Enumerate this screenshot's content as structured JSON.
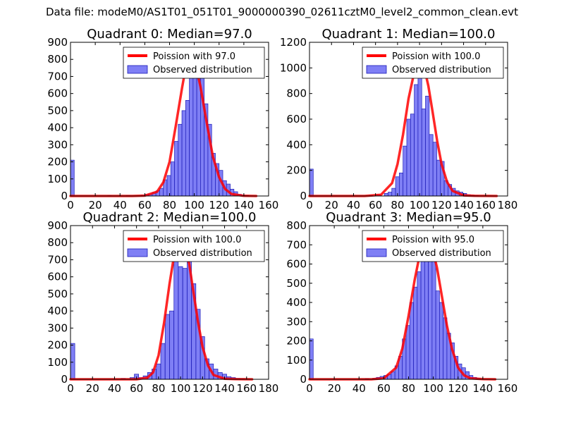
{
  "figure": {
    "suptitle": "Data file: modeM0/AS1T01_051T01_9000000390_02611cztM0_level2_common_clean.evt"
  },
  "colors": {
    "hist_fill": "#7f7ff5",
    "hist_edge": "#1b1bb8",
    "curve": "#ff0000",
    "axis": "#000000"
  },
  "chart_data": [
    {
      "type": "bar",
      "title": "Quadrant 0: Median=97.0",
      "xlim": [
        0,
        160
      ],
      "ylim": [
        0,
        900
      ],
      "xticks": [
        0,
        20,
        40,
        60,
        80,
        100,
        120,
        140,
        160
      ],
      "yticks": [
        0,
        100,
        200,
        300,
        400,
        500,
        600,
        700,
        800,
        900
      ],
      "legend_position": "top-right",
      "legend": [
        "Poission with 97.0",
        "Observed distribution"
      ],
      "bin_width": 3.0,
      "bins": [
        {
          "x": 0,
          "v": 210
        },
        {
          "x": 30,
          "v": 2
        },
        {
          "x": 45,
          "v": 2
        },
        {
          "x": 57,
          "v": 5
        },
        {
          "x": 60,
          "v": 10
        },
        {
          "x": 63,
          "v": 12
        },
        {
          "x": 66,
          "v": 20
        },
        {
          "x": 69,
          "v": 30
        },
        {
          "x": 72,
          "v": 45
        },
        {
          "x": 75,
          "v": 95
        },
        {
          "x": 78,
          "v": 120
        },
        {
          "x": 81,
          "v": 200
        },
        {
          "x": 84,
          "v": 320
        },
        {
          "x": 87,
          "v": 420
        },
        {
          "x": 90,
          "v": 500
        },
        {
          "x": 93,
          "v": 560
        },
        {
          "x": 96,
          "v": 780
        },
        {
          "x": 99,
          "v": 800
        },
        {
          "x": 102,
          "v": 740
        },
        {
          "x": 105,
          "v": 700
        },
        {
          "x": 108,
          "v": 540
        },
        {
          "x": 111,
          "v": 420
        },
        {
          "x": 114,
          "v": 250
        },
        {
          "x": 117,
          "v": 190
        },
        {
          "x": 120,
          "v": 150
        },
        {
          "x": 123,
          "v": 90
        },
        {
          "x": 126,
          "v": 70
        },
        {
          "x": 129,
          "v": 40
        },
        {
          "x": 132,
          "v": 25
        },
        {
          "x": 135,
          "v": 10
        },
        {
          "x": 138,
          "v": 5
        },
        {
          "x": 141,
          "v": 3
        }
      ],
      "curve": {
        "name": "Poission with 97.0",
        "x": [
          0,
          50,
          60,
          70,
          75,
          80,
          85,
          90,
          93,
          97,
          101,
          105,
          110,
          115,
          120,
          125,
          130,
          140,
          150
        ],
        "y": [
          0,
          0,
          2,
          25,
          80,
          200,
          410,
          630,
          750,
          820,
          770,
          640,
          430,
          230,
          110,
          40,
          12,
          1,
          0
        ]
      }
    },
    {
      "type": "bar",
      "title": "Quadrant 1: Median=100.0",
      "xlim": [
        0,
        180
      ],
      "ylim": [
        0,
        1200
      ],
      "xticks": [
        0,
        20,
        40,
        60,
        80,
        100,
        120,
        140,
        160,
        180
      ],
      "yticks": [
        0,
        200,
        400,
        600,
        800,
        1000,
        1200
      ],
      "legend_position": "top-right",
      "legend": [
        "Poission with 100.0",
        "Observed distribution"
      ],
      "bin_width": 3.4,
      "bins": [
        {
          "x": 0,
          "v": 210
        },
        {
          "x": 54,
          "v": 5
        },
        {
          "x": 61,
          "v": 10
        },
        {
          "x": 68,
          "v": 20
        },
        {
          "x": 71.4,
          "v": 30
        },
        {
          "x": 74.8,
          "v": 60
        },
        {
          "x": 78.2,
          "v": 150
        },
        {
          "x": 81.6,
          "v": 180
        },
        {
          "x": 85,
          "v": 390
        },
        {
          "x": 88.4,
          "v": 600
        },
        {
          "x": 91.8,
          "v": 640
        },
        {
          "x": 95.2,
          "v": 870
        },
        {
          "x": 98.6,
          "v": 1000
        },
        {
          "x": 102,
          "v": 680
        },
        {
          "x": 105.4,
          "v": 780
        },
        {
          "x": 108.8,
          "v": 480
        },
        {
          "x": 112.2,
          "v": 420
        },
        {
          "x": 115.6,
          "v": 280
        },
        {
          "x": 119,
          "v": 270
        },
        {
          "x": 122.4,
          "v": 120
        },
        {
          "x": 125.8,
          "v": 90
        },
        {
          "x": 129.2,
          "v": 60
        },
        {
          "x": 132.6,
          "v": 40
        },
        {
          "x": 136,
          "v": 30
        },
        {
          "x": 139.4,
          "v": 20
        },
        {
          "x": 142.8,
          "v": 10
        },
        {
          "x": 146.2,
          "v": 5
        },
        {
          "x": 150,
          "v": 3
        }
      ],
      "curve": {
        "name": "Poission with 100.0",
        "x": [
          0,
          50,
          65,
          75,
          80,
          85,
          90,
          95,
          100,
          104,
          108,
          112,
          116,
          120,
          125,
          130,
          140,
          150,
          170
        ],
        "y": [
          0,
          0,
          10,
          100,
          250,
          480,
          760,
          960,
          1050,
          1010,
          860,
          650,
          430,
          250,
          110,
          40,
          5,
          1,
          0
        ]
      }
    },
    {
      "type": "bar",
      "title": "Quadrant 2: Median=100.0",
      "xlim": [
        0,
        180
      ],
      "ylim": [
        0,
        900
      ],
      "xticks": [
        0,
        20,
        40,
        60,
        80,
        100,
        120,
        140,
        160,
        180
      ],
      "yticks": [
        0,
        100,
        200,
        300,
        400,
        500,
        600,
        700,
        800,
        900
      ],
      "legend_position": "top-right",
      "legend": [
        "Poission with 100.0",
        "Observed distribution"
      ],
      "bin_width": 3.9,
      "bins": [
        {
          "x": 0,
          "v": 210
        },
        {
          "x": 46,
          "v": 5
        },
        {
          "x": 54,
          "v": 10
        },
        {
          "x": 58,
          "v": 30
        },
        {
          "x": 62,
          "v": 10
        },
        {
          "x": 66,
          "v": 20
        },
        {
          "x": 70,
          "v": 40
        },
        {
          "x": 74,
          "v": 60
        },
        {
          "x": 78,
          "v": 90
        },
        {
          "x": 82,
          "v": 210
        },
        {
          "x": 86,
          "v": 380
        },
        {
          "x": 90,
          "v": 400
        },
        {
          "x": 94,
          "v": 700
        },
        {
          "x": 98,
          "v": 660
        },
        {
          "x": 102,
          "v": 650
        },
        {
          "x": 106,
          "v": 760
        },
        {
          "x": 110,
          "v": 560
        },
        {
          "x": 114,
          "v": 410
        },
        {
          "x": 118,
          "v": 250
        },
        {
          "x": 122,
          "v": 120
        },
        {
          "x": 126,
          "v": 90
        },
        {
          "x": 130,
          "v": 60
        },
        {
          "x": 134,
          "v": 40
        },
        {
          "x": 138,
          "v": 30
        },
        {
          "x": 142,
          "v": 15
        },
        {
          "x": 146,
          "v": 10
        },
        {
          "x": 150,
          "v": 5
        },
        {
          "x": 154,
          "v": 3
        }
      ],
      "curve": {
        "name": "Poission with 100.0",
        "x": [
          0,
          60,
          70,
          75,
          80,
          85,
          90,
          95,
          100,
          104,
          108,
          112,
          116,
          120,
          125,
          130,
          140,
          150,
          165
        ],
        "y": [
          0,
          0,
          10,
          40,
          140,
          330,
          560,
          760,
          820,
          790,
          670,
          500,
          330,
          190,
          80,
          25,
          3,
          1,
          0
        ]
      }
    },
    {
      "type": "bar",
      "title": "Quadrant 3: Median=95.0",
      "xlim": [
        0,
        160
      ],
      "ylim": [
        0,
        800
      ],
      "xticks": [
        0,
        20,
        40,
        60,
        80,
        100,
        120,
        140,
        160
      ],
      "yticks": [
        0,
        100,
        200,
        300,
        400,
        500,
        600,
        700,
        800
      ],
      "legend_position": "top-right",
      "legend": [
        "Poission with 95.0",
        "Observed distribution"
      ],
      "bin_width": 3.0,
      "bins": [
        {
          "x": 0,
          "v": 210
        },
        {
          "x": 45,
          "v": 3
        },
        {
          "x": 51,
          "v": 5
        },
        {
          "x": 54,
          "v": 10
        },
        {
          "x": 57,
          "v": 15
        },
        {
          "x": 60,
          "v": 20
        },
        {
          "x": 63,
          "v": 25
        },
        {
          "x": 66,
          "v": 40
        },
        {
          "x": 69,
          "v": 70
        },
        {
          "x": 72,
          "v": 120
        },
        {
          "x": 75,
          "v": 210
        },
        {
          "x": 78,
          "v": 280
        },
        {
          "x": 81,
          "v": 400
        },
        {
          "x": 84,
          "v": 480
        },
        {
          "x": 87,
          "v": 560
        },
        {
          "x": 90,
          "v": 640
        },
        {
          "x": 93,
          "v": 680
        },
        {
          "x": 96,
          "v": 700
        },
        {
          "x": 99,
          "v": 620
        },
        {
          "x": 102,
          "v": 460
        },
        {
          "x": 105,
          "v": 400
        },
        {
          "x": 108,
          "v": 320
        },
        {
          "x": 111,
          "v": 240
        },
        {
          "x": 114,
          "v": 190
        },
        {
          "x": 117,
          "v": 120
        },
        {
          "x": 120,
          "v": 80
        },
        {
          "x": 123,
          "v": 60
        },
        {
          "x": 126,
          "v": 40
        },
        {
          "x": 129,
          "v": 20
        },
        {
          "x": 132,
          "v": 10
        },
        {
          "x": 135,
          "v": 5
        }
      ],
      "curve": {
        "name": "Poission with 95.0",
        "x": [
          0,
          50,
          60,
          70,
          75,
          80,
          85,
          90,
          95,
          99,
          103,
          107,
          111,
          115,
          120,
          125,
          130,
          140,
          150
        ],
        "y": [
          0,
          0,
          5,
          60,
          160,
          330,
          520,
          680,
          730,
          690,
          580,
          430,
          280,
          160,
          60,
          20,
          5,
          1,
          0
        ]
      }
    }
  ]
}
